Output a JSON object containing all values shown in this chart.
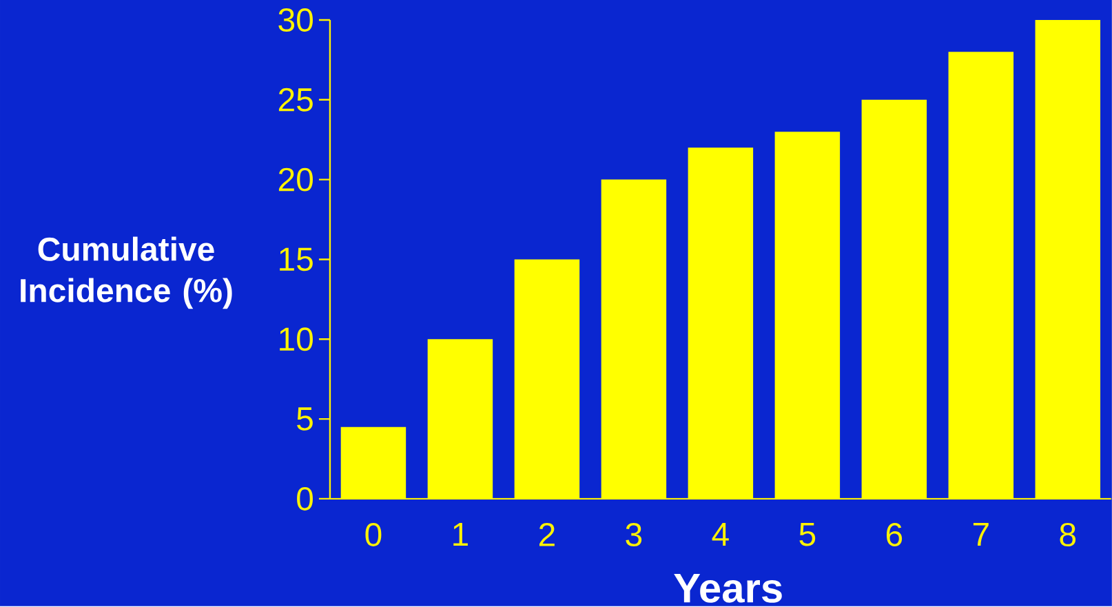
{
  "chart_data": {
    "type": "bar",
    "xlabel": "Years",
    "ylabel": "Cumulative Incidence (%)",
    "categories": [
      "0",
      "1",
      "2",
      "3",
      "4",
      "5",
      "6",
      "7",
      "8"
    ],
    "values": [
      4.5,
      10,
      15,
      20,
      22,
      23,
      25,
      28,
      30
    ],
    "color": "#ffff00",
    "ylim": [
      0,
      30
    ],
    "yticks": [
      0,
      5,
      10,
      15,
      20,
      25,
      30
    ]
  }
}
